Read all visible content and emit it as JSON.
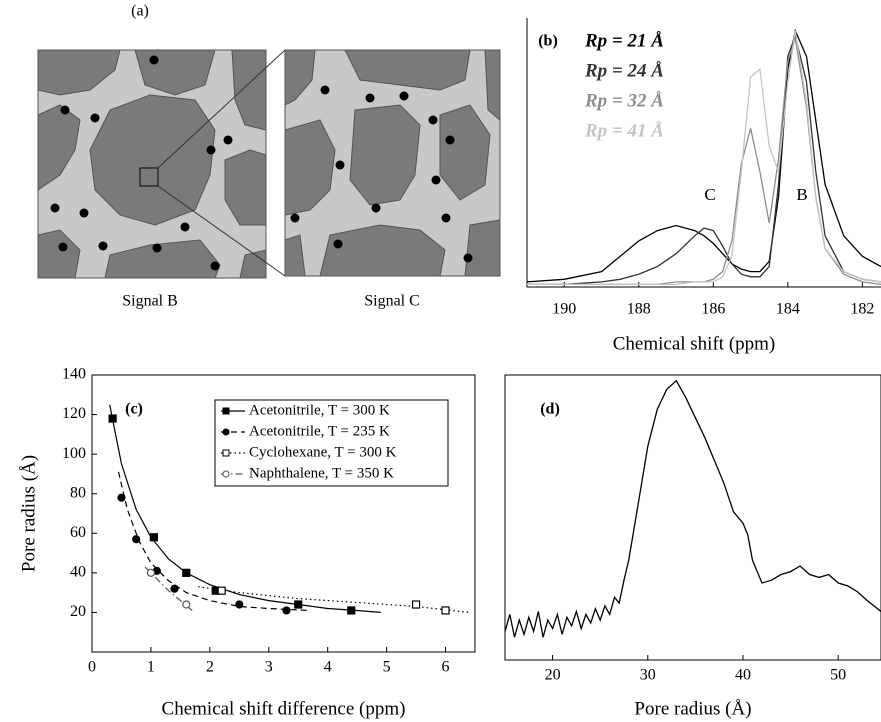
{
  "panel_a": {
    "label": "(a)",
    "left_caption": "Signal B",
    "right_caption": "Signal C"
  },
  "chart_data": [
    {
      "type": "line",
      "panel_label": "(b)",
      "x_label": "Chemical shift (ppm)",
      "x": [
        191,
        190,
        189,
        188.5,
        188,
        187.5,
        187,
        186.5,
        186.25,
        186,
        185.75,
        185.5,
        185.25,
        185,
        184.75,
        184.5,
        184.25,
        184,
        183.8,
        183.5,
        183.25,
        183,
        182.5,
        182,
        181.5
      ],
      "xlim": [
        191,
        181.5
      ],
      "xticks": [
        190,
        188,
        186,
        184,
        182
      ],
      "ylim": [
        0,
        105
      ],
      "annotations": [
        "C",
        "B"
      ],
      "series": [
        {
          "name": "Rp = 21 Å",
          "color": "#000000",
          "values": [
            2,
            3,
            6,
            12,
            18,
            22,
            24,
            22,
            20,
            17,
            13,
            9,
            7,
            6,
            6,
            10,
            35,
            85,
            100,
            90,
            65,
            40,
            20,
            12,
            8
          ]
        },
        {
          "name": "Rp = 24 Å",
          "color": "#333333",
          "values": [
            1,
            1,
            2,
            3,
            5,
            8,
            13,
            20,
            23,
            22,
            16,
            9,
            5,
            4,
            4,
            8,
            40,
            90,
            98,
            80,
            45,
            20,
            6,
            3,
            2
          ]
        },
        {
          "name": "Rp = 32 Å",
          "color": "#8c8c8c",
          "values": [
            1,
            1,
            1,
            1,
            1,
            1,
            2,
            2,
            2,
            3,
            6,
            18,
            48,
            62,
            45,
            25,
            50,
            88,
            97,
            70,
            35,
            15,
            5,
            2,
            1
          ]
        },
        {
          "name": "Rp = 41 Å",
          "color": "#c4c4c4",
          "values": [
            1,
            1,
            1,
            1,
            1,
            1,
            1,
            2,
            2,
            2,
            4,
            12,
            45,
            82,
            85,
            55,
            45,
            80,
            100,
            72,
            35,
            15,
            6,
            3,
            2
          ]
        }
      ]
    },
    {
      "type": "scatter",
      "panel_label": "(c)",
      "x_label": "Chemical shift difference (ppm)",
      "y_label": "Pore radius (Å)",
      "xlim": [
        0,
        6.5
      ],
      "xticks": [
        0,
        1,
        2,
        3,
        4,
        5,
        6
      ],
      "ylim": [
        0,
        140
      ],
      "yticks": [
        20,
        40,
        60,
        80,
        100,
        120,
        140
      ],
      "series": [
        {
          "name": "Acetonitrile, T = 300 K",
          "color": "#000000",
          "marker": "filled-square",
          "dash": "solid",
          "x": [
            0.35,
            1.05,
            1.6,
            2.1,
            3.5,
            4.4
          ],
          "values": [
            118,
            58,
            40,
            31,
            24,
            21
          ],
          "fit": {
            "x": [
              0.3,
              0.5,
              0.75,
              1.0,
              1.3,
              1.6,
              2.0,
              2.5,
              3.0,
              3.5,
              4.0,
              4.5,
              4.9
            ],
            "values": [
              125,
              95,
              72,
              58,
              47,
              40,
              34,
              29,
              26,
              24,
              22,
              21,
              20
            ]
          }
        },
        {
          "name": "Acetonitrile, T = 235 K",
          "color": "#000000",
          "marker": "filled-circle",
          "dash": "dashed",
          "x": [
            0.5,
            0.75,
            1.1,
            1.4,
            2.5,
            3.3
          ],
          "values": [
            78,
            57,
            41,
            32,
            24,
            21
          ],
          "fit": {
            "x": [
              0.45,
              0.6,
              0.8,
              1.0,
              1.3,
              1.6,
              2.0,
              2.5,
              3.0,
              3.7
            ],
            "values": [
              91,
              72,
              56,
              45,
              36,
              30,
              26,
              23,
              22,
              21
            ]
          }
        },
        {
          "name": "Cyclohexane,  T = 300 K",
          "color": "#000000",
          "marker": "open-square",
          "dash": "dotted",
          "x": [
            2.2,
            5.5,
            6.0
          ],
          "values": [
            31,
            24,
            21
          ],
          "fit": {
            "x": [
              1.8,
              2.5,
              3.5,
              4.5,
              5.5,
              6.4
            ],
            "values": [
              33,
              30,
              27,
              25,
              23,
              20
            ]
          }
        },
        {
          "name": "Naphthalene, T = 350 K",
          "color": "#555555",
          "marker": "open-circle",
          "dash": "dashdot",
          "x": [
            1.0,
            1.6
          ],
          "values": [
            40,
            24
          ],
          "fit": {
            "x": [
              0.9,
              1.1,
              1.3,
              1.5,
              1.7
            ],
            "values": [
              43,
              37,
              31,
              26,
              21
            ]
          }
        }
      ]
    },
    {
      "type": "line",
      "panel_label": "(d)",
      "x_label": "Pore radius (Å)",
      "xlim": [
        15,
        54.5
      ],
      "xticks": [
        20,
        30,
        40,
        50
      ],
      "ylim": [
        0,
        100
      ],
      "x": [
        15,
        15.5,
        16,
        16.5,
        17,
        17.5,
        18,
        18.5,
        19,
        19.5,
        20,
        20.5,
        21,
        21.5,
        22,
        22.5,
        23,
        23.5,
        24,
        24.5,
        25,
        25.5,
        26,
        26.5,
        27,
        27.5,
        28,
        29,
        30,
        31,
        32,
        33,
        34,
        35,
        36,
        37,
        38,
        39,
        40,
        40.5,
        41,
        42,
        43,
        44,
        45,
        46,
        47,
        48,
        49,
        50,
        51,
        52,
        53,
        54.5
      ],
      "values": [
        10,
        16,
        8,
        14,
        9,
        15,
        10,
        17,
        8,
        14,
        11,
        16,
        9,
        15,
        12,
        17,
        11,
        16,
        13,
        18,
        14,
        19,
        16,
        22,
        20,
        28,
        35,
        55,
        75,
        88,
        95,
        98,
        92,
        85,
        78,
        70,
        62,
        52,
        48,
        44,
        35,
        27,
        28,
        30,
        31,
        33,
        30,
        29,
        30,
        27,
        26,
        24,
        21,
        17
      ],
      "color": "#000000"
    }
  ]
}
